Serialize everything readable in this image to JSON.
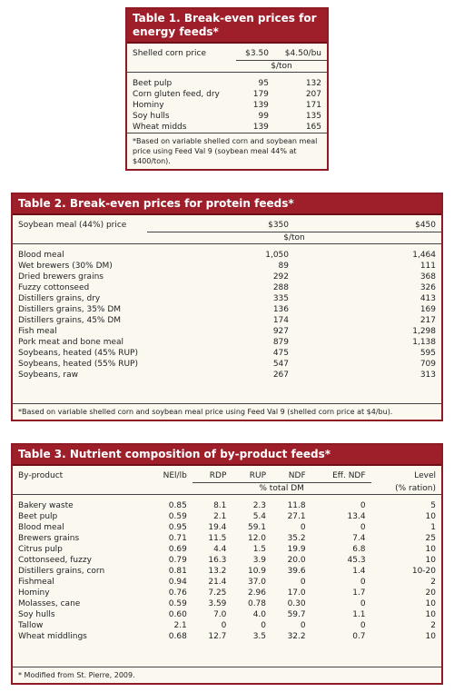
{
  "table1": {
    "title": "Table 1. Break-even prices for energy feeds*",
    "header": {
      "label": "Shelled corn price",
      "columns": [
        "$3.50",
        "$4.50/bu"
      ],
      "unit": "$/ton"
    },
    "rows": [
      [
        "Beet pulp",
        "95",
        "132"
      ],
      [
        "Corn gluten feed, dry",
        "179",
        "207"
      ],
      [
        "Hominy",
        "139",
        "171"
      ],
      [
        "Soy hulls",
        "99",
        "135"
      ],
      [
        "Wheat midds",
        "139",
        "165"
      ]
    ],
    "footnote": "*Based on variable shelled corn and soybean meal price using Feed Val 9 (soybean meal 44% at $400/ton)."
  },
  "table2": {
    "title": "Table 2. Break-even prices for protein feeds*",
    "header": {
      "label": "Soybean meal (44%) price",
      "columns": [
        "$350",
        "$450"
      ],
      "unit": "$/ton"
    },
    "rows": [
      [
        "Blood meal",
        "1,050",
        "1,464"
      ],
      [
        "Wet brewers (30% DM)",
        "89",
        "111"
      ],
      [
        "Dried brewers grains",
        "292",
        "368"
      ],
      [
        "Fuzzy cottonseed",
        "288",
        "326"
      ],
      [
        "Distillers grains, dry",
        "335",
        "413"
      ],
      [
        "Distillers grains, 35% DM",
        "136",
        "169"
      ],
      [
        "Distillers grains, 45% DM",
        "174",
        "217"
      ],
      [
        "Fish meal",
        "927",
        "1,298"
      ],
      [
        "Pork meat and bone meal",
        "879",
        "1,138"
      ],
      [
        "Soybeans, heated (45% RUP)",
        "475",
        "595"
      ],
      [
        "Soybeans, heated (55% RUP)",
        "547",
        "709"
      ],
      [
        "Soybeans, raw",
        "267",
        "313"
      ]
    ],
    "footnote": "*Based on variable shelled corn and soybean meal price using Feed Val 9 (shelled corn price at $4/bu)."
  },
  "table3": {
    "title": "Table 3. Nutrient composition of by-product feeds*",
    "header": {
      "columns": [
        "By-product",
        "NEl/lb",
        "RDP",
        "RUP",
        "NDF",
        "Eff. NDF",
        "Level"
      ],
      "unit": "% total DM",
      "level_unit": "(% ration)"
    },
    "rows": [
      [
        "Bakery waste",
        "0.85",
        "8.1",
        "2.3",
        "11.8",
        "0",
        "5"
      ],
      [
        "Beet pulp",
        "0.59",
        "2.1",
        "5.4",
        "27.1",
        "13.4",
        "10"
      ],
      [
        "Blood meal",
        "0.95",
        "19.4",
        "59.1",
        "0",
        "0",
        "1"
      ],
      [
        "Brewers grains",
        "0.71",
        "11.5",
        "12.0",
        "35.2",
        "7.4",
        "25"
      ],
      [
        "Citrus pulp",
        "0.69",
        "4.4",
        "1.5",
        "19.9",
        "6.8",
        "10"
      ],
      [
        "Cottonseed, fuzzy",
        "0.79",
        "16.3",
        "3.9",
        "20.0",
        "45.3",
        "10"
      ],
      [
        "Distillers grains, corn",
        "0.81",
        "13.2",
        "10.9",
        "39.6",
        "1.4",
        "10-20"
      ],
      [
        "Fishmeal",
        "0.94",
        "21.4",
        "37.0",
        "0",
        "0",
        "2"
      ],
      [
        "Hominy",
        "0.76",
        "7.25",
        "2.96",
        "17.0",
        "1.7",
        "20"
      ],
      [
        "Molasses, cane",
        "0.59",
        "3.59",
        "0.78",
        "0.30",
        "0",
        "10"
      ],
      [
        "Soy hulls",
        "0.60",
        "7.0",
        "4.0",
        "59.7",
        "1.1",
        "10"
      ],
      [
        "Tallow",
        "2.1",
        "0",
        "0",
        "0",
        "0",
        "2"
      ],
      [
        "Wheat middlings",
        "0.68",
        "12.7",
        "3.5",
        "32.2",
        "0.7",
        "10"
      ]
    ],
    "footnote": "* Modified from St. Pierre, 2009."
  }
}
